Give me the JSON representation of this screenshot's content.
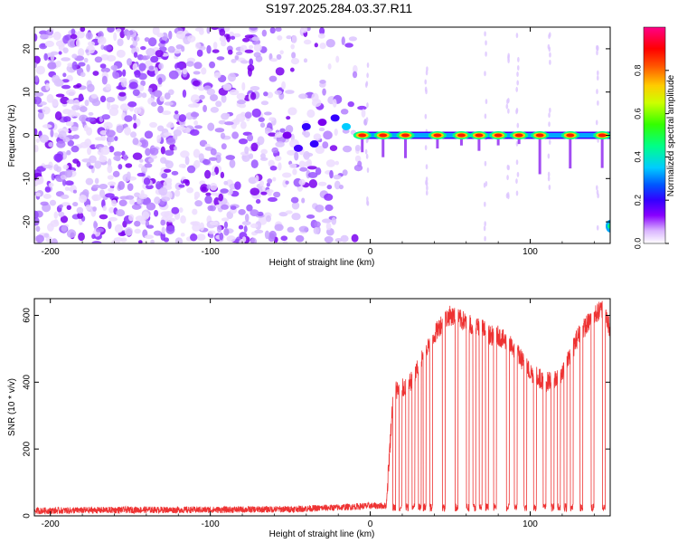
{
  "title": "S197.2025.284.03.37.R11",
  "chart_data": [
    {
      "type": "heatmap",
      "xlabel": "Height of straight line (km)",
      "ylabel": "Frequency (Hz)",
      "xlim": [
        -210,
        150
      ],
      "ylim": [
        -25,
        25
      ],
      "xticks": [
        -200,
        -100,
        0,
        100
      ],
      "xtick_labels": [
        "-200",
        "-100",
        "0",
        "100"
      ],
      "yticks": [
        20,
        10,
        0,
        -10,
        -20
      ],
      "ytick_labels": [
        "20",
        "10",
        "0",
        "-10",
        "-20"
      ],
      "colorbar": {
        "label": "Normalized spectral amplitude",
        "range": [
          0,
          1
        ],
        "ticks": [
          0.0,
          0.2,
          0.4,
          0.6,
          0.8
        ],
        "tick_labels": [
          "0.0",
          "0.2",
          "0.4",
          "0.6",
          "0.8"
        ],
        "colors": [
          "#ffffff",
          "#cc99ff",
          "#8800ff",
          "#2a00ff",
          "#0066ff",
          "#00ddff",
          "#00ff66",
          "#66ff00",
          "#ffee00",
          "#ff8800",
          "#ff0000",
          "#ff00aa"
        ]
      },
      "strong_tones_km": [
        -5,
        8,
        22,
        42,
        57,
        68,
        80,
        93,
        106,
        125,
        145
      ],
      "noise_region_km": [
        -210,
        0
      ],
      "tone_line_hz": 0
    },
    {
      "type": "line",
      "xlabel": "Height of straight line (km)",
      "ylabel": "SNR (10 * v/v)",
      "xlim": [
        -210,
        150
      ],
      "ylim": [
        0,
        650
      ],
      "xticks": [
        -200,
        -100,
        0,
        100
      ],
      "xtick_labels": [
        "-200",
        "-100",
        "0",
        "100"
      ],
      "yticks": [
        0,
        200,
        400,
        600
      ],
      "ytick_labels": [
        "0",
        "200",
        "400",
        "600"
      ],
      "line_color": "#ee3333",
      "series": [
        {
          "name": "SNR",
          "x": [
            -210,
            -150,
            -100,
            -50,
            -20,
            0,
            10,
            14,
            16,
            20,
            25,
            30,
            35,
            40,
            45,
            50,
            60,
            70,
            75,
            80,
            90,
            100,
            110,
            120,
            125,
            130,
            140,
            145,
            150
          ],
          "y": [
            15,
            18,
            18,
            20,
            25,
            30,
            30,
            340,
            380,
            380,
            400,
            440,
            500,
            540,
            580,
            600,
            580,
            560,
            540,
            540,
            500,
            430,
            400,
            420,
            480,
            540,
            600,
            620,
            560
          ]
        }
      ],
      "baseline_level": 20,
      "dropout_km": [
        15,
        19,
        23,
        27,
        31,
        34,
        38,
        46,
        54,
        61,
        65,
        69,
        73,
        78,
        86,
        91,
        97,
        103,
        109,
        114,
        118,
        122,
        126,
        132,
        139,
        146
      ]
    }
  ]
}
